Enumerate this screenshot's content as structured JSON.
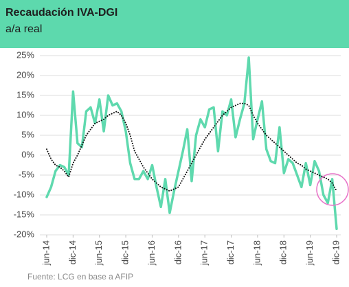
{
  "chart_data": {
    "type": "line",
    "title": "Recaudación IVA-DGI",
    "subtitle": "a/a real",
    "source": "Fuente: LCG en base a AFIP",
    "categories": [
      "jun-14",
      null,
      null,
      null,
      null,
      null,
      "dic-14",
      null,
      null,
      null,
      null,
      null,
      "jun-15",
      null,
      null,
      null,
      null,
      null,
      "dic-15",
      null,
      null,
      null,
      null,
      null,
      "jun-16",
      null,
      null,
      null,
      null,
      null,
      "dic-16",
      null,
      null,
      null,
      null,
      null,
      "jun-17",
      null,
      null,
      null,
      null,
      null,
      "dic-17",
      null,
      null,
      null,
      null,
      null,
      "jun-18",
      null,
      null,
      null,
      null,
      null,
      "dic-18",
      null,
      null,
      null,
      null,
      null,
      "jun-19",
      null,
      null,
      null,
      null,
      null,
      "dic-19"
    ],
    "series": [
      {
        "color": "#5fd9ae",
        "style": "solid",
        "values": [
          -10.5,
          -8,
          -4,
          -2.5,
          -3,
          -5,
          16,
          3,
          2,
          11,
          12,
          8,
          14,
          6,
          15,
          12.5,
          13,
          11,
          6,
          -2,
          -6,
          -6,
          -4,
          -6,
          -2.5,
          -8,
          -13,
          -6,
          -14.5,
          -9,
          -4,
          1,
          6.5,
          -6.5,
          5,
          9,
          7,
          11.5,
          12,
          1,
          11,
          10,
          14,
          4.5,
          9,
          13,
          24.5,
          4,
          9,
          13.5,
          1.5,
          -1.5,
          -2,
          7,
          -4.5,
          -1,
          -2,
          -5,
          -8,
          -2,
          -7.5,
          -1.5,
          -4,
          -10,
          -12,
          -6,
          -18.5
        ]
      },
      {
        "color": "#111111",
        "style": "dotted",
        "values": [
          1.5,
          -1,
          -2.5,
          -3,
          -4,
          -5.5,
          -2,
          0,
          2.5,
          5,
          6.5,
          8,
          8.5,
          9,
          10,
          10.5,
          11,
          10,
          8,
          5,
          1,
          -1,
          -3,
          -4.5,
          -6,
          -7,
          -8,
          -8.5,
          -9,
          -8.5,
          -8,
          -6,
          -4,
          -2,
          0,
          2,
          4,
          5.5,
          7,
          8.5,
          10,
          11,
          12,
          12.5,
          13,
          13,
          12.5,
          10,
          8,
          6.5,
          5,
          4,
          3,
          2,
          1,
          0,
          -1,
          -2,
          -2.5,
          -3.5,
          -4,
          -4.5,
          -5,
          -5.5,
          -6,
          -7,
          -9
        ]
      }
    ],
    "ylim": [
      -20,
      25
    ],
    "yticks": [
      {
        "value": -20,
        "label": "-20%"
      },
      {
        "value": -15,
        "label": "-15%"
      },
      {
        "value": -10,
        "label": "-10%"
      },
      {
        "value": -5,
        "label": "-5%"
      },
      {
        "value": 0,
        "label": "0%"
      },
      {
        "value": 5,
        "label": "5%"
      },
      {
        "value": 10,
        "label": "10%"
      },
      {
        "value": 15,
        "label": "15%"
      },
      {
        "value": 20,
        "label": "20%"
      },
      {
        "value": 25,
        "label": "25%"
      }
    ],
    "grid": true
  }
}
